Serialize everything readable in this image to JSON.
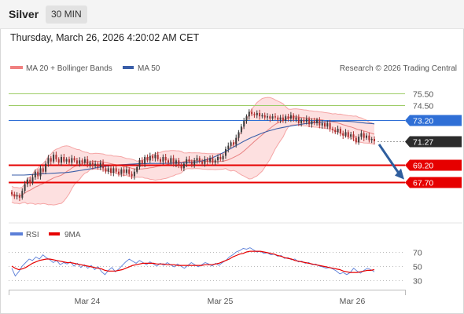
{
  "header": {
    "title": "Silver",
    "interval": "30 MIN",
    "timestamp": "Thursday, March 26, 2026 4:20:02 AM CET"
  },
  "copyright": "Research © 2026 Trading Central",
  "colors": {
    "candle_up": "#3a3a3a",
    "candle_down": "#b03030",
    "bollinger": "#f5a5a5",
    "bollinger_fill": "#fde0e0",
    "ma20": "#e88080",
    "ma50": "#3a5ea8",
    "support": "#e60000",
    "resistance_level": "#2f6fd6",
    "target_line": "#9ccc65",
    "current_tag": "#2c2c2c",
    "arrow": "#2f5e9e",
    "rsi": "#5b7fd8",
    "rsi_ma": "#e60000"
  },
  "chart_data": [
    {
      "type": "candlestick",
      "title": "Silver",
      "legend": [
        {
          "label": "MA 20 + Bollinger Bands",
          "color": "#f08080"
        },
        {
          "label": "MA 50",
          "color": "#3a5ea8"
        }
      ],
      "x_labels": [
        "Mar 24",
        "Mar 25",
        "Mar 26"
      ],
      "ylim": [
        64.2,
        77.2
      ],
      "current_price": 71.27,
      "levels": [
        {
          "value": 75.5,
          "label": "75.50",
          "kind": "target",
          "color": "#9ccc65"
        },
        {
          "value": 74.5,
          "label": "74.50",
          "kind": "target",
          "color": "#9ccc65"
        },
        {
          "value": 73.2,
          "label": "73.20",
          "kind": "resistance",
          "color": "#2f6fd6"
        },
        {
          "value": 69.2,
          "label": "69.20",
          "kind": "support",
          "color": "#e60000"
        },
        {
          "value": 67.7,
          "label": "67.70",
          "kind": "support",
          "color": "#e60000"
        }
      ],
      "closes": [
        66.6,
        66.4,
        66.5,
        66.3,
        66.9,
        67.5,
        67.9,
        67.6,
        68.1,
        68.6,
        68.2,
        68.9,
        68.6,
        69.3,
        69.8,
        69.5,
        70.1,
        69.7,
        69.4,
        69.9,
        69.5,
        69.7,
        69.4,
        69.8,
        69.6,
        69.3,
        69.6,
        69.4,
        69.7,
        69.2,
        69.4,
        69.1,
        69.3,
        69.0,
        69.4,
        68.9,
        68.6,
        68.9,
        68.5,
        68.9,
        68.6,
        68.4,
        68.8,
        68.5,
        68.8,
        68.4,
        68.2,
        68.6,
        69.0,
        69.6,
        69.3,
        69.9,
        69.6,
        70.0,
        69.8,
        70.1,
        69.7,
        69.5,
        69.9,
        69.6,
        69.4,
        69.8,
        69.3,
        69.6,
        69.1,
        68.9,
        69.3,
        69.7,
        69.5,
        69.2,
        69.6,
        69.8,
        69.5,
        69.3,
        69.7,
        69.5,
        69.8,
        69.4,
        69.6,
        69.9,
        69.7,
        70.0,
        70.6,
        70.9,
        71.2,
        71.0,
        71.6,
        72.1,
        72.6,
        73.1,
        73.5,
        73.9,
        73.7,
        73.6,
        73.8,
        73.5,
        73.6,
        73.4,
        73.5,
        73.3,
        73.5,
        73.4,
        73.2,
        73.4,
        73.1,
        73.5,
        73.3,
        73.6,
        73.2,
        73.4,
        72.9,
        73.2,
        73.0,
        73.3,
        72.8,
        73.1,
        72.9,
        73.2,
        72.7,
        72.9,
        72.6,
        72.9,
        72.4,
        72.3,
        72.1,
        72.4,
        72.0,
        71.8,
        72.1,
        71.7,
        71.9,
        71.6,
        71.2,
        71.7,
        72.0,
        71.6,
        71.8,
        71.4,
        71.5,
        71.3
      ],
      "ma50": [
        68.3,
        68.3,
        68.3,
        68.3,
        68.32,
        68.35,
        68.38,
        68.4,
        68.42,
        68.44,
        68.46,
        68.48,
        68.5,
        68.52,
        68.55,
        68.6,
        68.66,
        68.72,
        68.78,
        68.84,
        68.9,
        68.96,
        69.02,
        69.08,
        69.12,
        69.16,
        69.2,
        69.22,
        69.24,
        69.26,
        69.28,
        69.3,
        69.31,
        69.32,
        69.33,
        69.33,
        69.33,
        69.33,
        69.34,
        69.35,
        69.36,
        69.37,
        69.38,
        69.4,
        69.42,
        69.45,
        69.5,
        69.58,
        69.68,
        69.8,
        69.95,
        70.12,
        70.3,
        70.5,
        70.7,
        70.9,
        71.1,
        71.3,
        71.48,
        71.65,
        71.8,
        71.95,
        72.08,
        72.2,
        72.3,
        72.4,
        72.48,
        72.55,
        72.62,
        72.68,
        72.74,
        72.8,
        72.85,
        72.9,
        72.94,
        72.97,
        73.0,
        73.03,
        73.05,
        73.07,
        73.08,
        73.08,
        73.07,
        73.05,
        73.02,
        72.98,
        72.94,
        72.9,
        72.87,
        72.84
      ]
    },
    {
      "type": "line",
      "title": "RSI",
      "legend": [
        {
          "label": "RSI",
          "color": "#5b7fd8"
        },
        {
          "label": "9MA",
          "color": "#e60000"
        }
      ],
      "ylim": [
        20,
        80
      ],
      "y_ticks": [
        70,
        50,
        30
      ],
      "series": [
        {
          "name": "RSI",
          "values": [
            47,
            36,
            42,
            50,
            55,
            60,
            58,
            63,
            60,
            66,
            62,
            59,
            55,
            58,
            52,
            55,
            53,
            56,
            50,
            54,
            48,
            52,
            47,
            51,
            45,
            49,
            42,
            38,
            44,
            48,
            42,
            46,
            51,
            56,
            60,
            57,
            54,
            58,
            55,
            52,
            56,
            53,
            50,
            54,
            51,
            55,
            52,
            49,
            53,
            50,
            47,
            51,
            55,
            52,
            49,
            52,
            55,
            53,
            50,
            54,
            51,
            55,
            58,
            63,
            66,
            70,
            72,
            75,
            74,
            76,
            73,
            70,
            71,
            68,
            69,
            66,
            67,
            64,
            65,
            61,
            62,
            59,
            60,
            56,
            57,
            54,
            55,
            52,
            53,
            50,
            49,
            47,
            48,
            46,
            43,
            39,
            41,
            38,
            41,
            47,
            43,
            40,
            44,
            47,
            45,
            42
          ]
        },
        {
          "name": "9MA",
          "values": [
            50,
            47,
            45,
            46,
            48,
            51,
            54,
            56,
            58,
            59,
            60,
            60,
            59,
            58,
            57,
            56,
            55,
            55,
            54,
            53,
            52,
            51,
            50,
            49,
            48,
            47,
            46,
            44,
            43,
            43,
            43,
            44,
            45,
            47,
            49,
            51,
            52,
            53,
            54,
            54,
            54,
            54,
            53,
            53,
            53,
            52,
            52,
            52,
            51,
            51,
            51,
            51,
            51,
            51,
            51,
            51,
            52,
            52,
            52,
            53,
            54,
            56,
            58,
            60,
            63,
            65,
            67,
            68,
            70,
            71,
            71,
            71,
            71,
            70,
            69,
            68,
            67,
            65,
            64,
            62,
            61,
            60,
            58,
            57,
            56,
            55,
            54,
            53,
            52,
            51,
            50,
            49,
            48,
            47,
            46,
            45,
            43,
            42,
            41,
            41,
            41,
            42,
            43,
            44,
            44,
            45
          ]
        }
      ]
    }
  ]
}
